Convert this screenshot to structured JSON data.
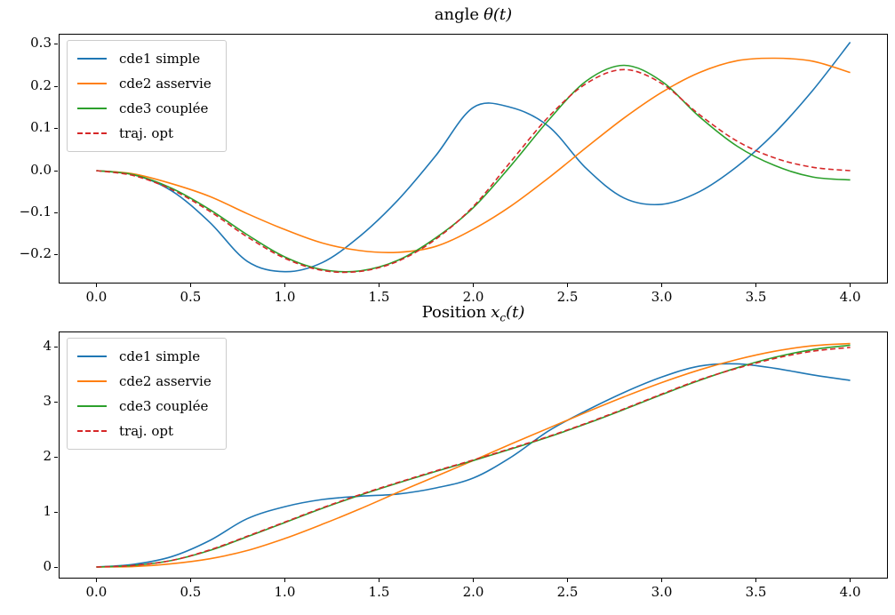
{
  "figure": {
    "background": "#ffffff",
    "spine_color": "#000000",
    "text_color": "#000000"
  },
  "chart_data": [
    {
      "type": "line",
      "title": {
        "text": "angle",
        "math": "θ(t)"
      },
      "xlim": [
        -0.2,
        4.2
      ],
      "ylim": [
        -0.268,
        0.325
      ],
      "grid": false,
      "legend_position": "upper left",
      "xticks": {
        "values": [
          0.0,
          0.5,
          1.0,
          1.5,
          2.0,
          2.5,
          3.0,
          3.5,
          4.0
        ],
        "labels": [
          "0.0",
          "0.5",
          "1.0",
          "1.5",
          "2.0",
          "2.5",
          "3.0",
          "3.5",
          "4.0"
        ]
      },
      "yticks": {
        "values": [
          -0.2,
          -0.1,
          0.0,
          0.1,
          0.2,
          0.3
        ],
        "labels": [
          "−0.2",
          "−0.1",
          "0.0",
          "0.1",
          "0.2",
          "0.3"
        ]
      },
      "x": [
        0.0,
        0.2,
        0.4,
        0.6,
        0.8,
        1.0,
        1.2,
        1.4,
        1.6,
        1.8,
        2.0,
        2.2,
        2.4,
        2.6,
        2.8,
        3.0,
        3.2,
        3.4,
        3.6,
        3.8,
        4.0
      ],
      "series": [
        {
          "name": "cde1 simple",
          "color": "#1f77b4",
          "dash": "solid",
          "y": [
            0.0,
            -0.01,
            -0.048,
            -0.122,
            -0.215,
            -0.24,
            -0.218,
            -0.155,
            -0.07,
            0.035,
            0.15,
            0.15,
            0.105,
            0.005,
            -0.065,
            -0.08,
            -0.05,
            0.01,
            0.09,
            0.19,
            0.305
          ]
        },
        {
          "name": "cde2 asservie",
          "color": "#ff7f0e",
          "dash": "solid",
          "y": [
            0.0,
            -0.008,
            -0.031,
            -0.061,
            -0.102,
            -0.14,
            -0.172,
            -0.19,
            -0.194,
            -0.18,
            -0.139,
            -0.084,
            -0.017,
            0.055,
            0.125,
            0.186,
            0.233,
            0.261,
            0.267,
            0.26,
            0.233
          ]
        },
        {
          "name": "cde3 couplée",
          "color": "#2ca02c",
          "dash": "solid",
          "y": [
            0.0,
            -0.01,
            -0.042,
            -0.092,
            -0.152,
            -0.205,
            -0.235,
            -0.238,
            -0.213,
            -0.16,
            -0.088,
            0.012,
            0.12,
            0.213,
            0.25,
            0.212,
            0.128,
            0.058,
            0.012,
            -0.015,
            -0.022
          ]
        },
        {
          "name": "traj. opt",
          "color": "#d62728",
          "dash": "dashed",
          "y": [
            0.0,
            -0.012,
            -0.045,
            -0.096,
            -0.157,
            -0.208,
            -0.237,
            -0.239,
            -0.215,
            -0.163,
            -0.085,
            0.022,
            0.128,
            0.207,
            0.24,
            0.207,
            0.133,
            0.07,
            0.03,
            0.008,
            0.0
          ]
        }
      ]
    },
    {
      "type": "line",
      "title": {
        "text": "Position",
        "var": "x",
        "sub": "c",
        "rest": "(t)"
      },
      "xlim": [
        -0.2,
        4.2
      ],
      "ylim": [
        -0.21,
        4.29
      ],
      "grid": false,
      "legend_position": "upper left",
      "xticks": {
        "values": [
          0.0,
          0.5,
          1.0,
          1.5,
          2.0,
          2.5,
          3.0,
          3.5,
          4.0
        ],
        "labels": [
          "0.0",
          "0.5",
          "1.0",
          "1.5",
          "2.0",
          "2.5",
          "3.0",
          "3.5",
          "4.0"
        ]
      },
      "yticks": {
        "values": [
          0,
          1,
          2,
          3,
          4
        ],
        "labels": [
          "0",
          "1",
          "2",
          "3",
          "4"
        ]
      },
      "x": [
        0.0,
        0.2,
        0.4,
        0.6,
        0.8,
        1.0,
        1.2,
        1.4,
        1.6,
        1.8,
        2.0,
        2.2,
        2.4,
        2.6,
        2.8,
        3.0,
        3.2,
        3.4,
        3.6,
        3.8,
        4.0
      ],
      "series": [
        {
          "name": "cde1 simple",
          "color": "#1f77b4",
          "dash": "solid",
          "y": [
            0.0,
            0.05,
            0.19,
            0.48,
            0.88,
            1.1,
            1.23,
            1.29,
            1.33,
            1.44,
            1.62,
            2.0,
            2.48,
            2.85,
            3.18,
            3.46,
            3.66,
            3.7,
            3.62,
            3.5,
            3.4
          ]
        },
        {
          "name": "cde2 asservie",
          "color": "#ff7f0e",
          "dash": "solid",
          "y": [
            0.0,
            0.01,
            0.06,
            0.15,
            0.3,
            0.52,
            0.78,
            1.06,
            1.36,
            1.65,
            1.94,
            2.24,
            2.53,
            2.82,
            3.1,
            3.36,
            3.59,
            3.78,
            3.93,
            4.03,
            4.07
          ]
        },
        {
          "name": "cde3 couplée",
          "color": "#2ca02c",
          "dash": "solid",
          "y": [
            0.0,
            0.03,
            0.12,
            0.3,
            0.55,
            0.81,
            1.07,
            1.31,
            1.53,
            1.74,
            1.94,
            2.15,
            2.37,
            2.61,
            2.87,
            3.14,
            3.4,
            3.63,
            3.82,
            3.96,
            4.04
          ]
        },
        {
          "name": "traj. opt",
          "color": "#d62728",
          "dash": "dashed",
          "y": [
            0.0,
            0.03,
            0.12,
            0.31,
            0.56,
            0.82,
            1.08,
            1.32,
            1.54,
            1.75,
            1.95,
            2.16,
            2.38,
            2.62,
            2.88,
            3.15,
            3.41,
            3.62,
            3.8,
            3.93,
            4.0
          ]
        }
      ]
    }
  ]
}
